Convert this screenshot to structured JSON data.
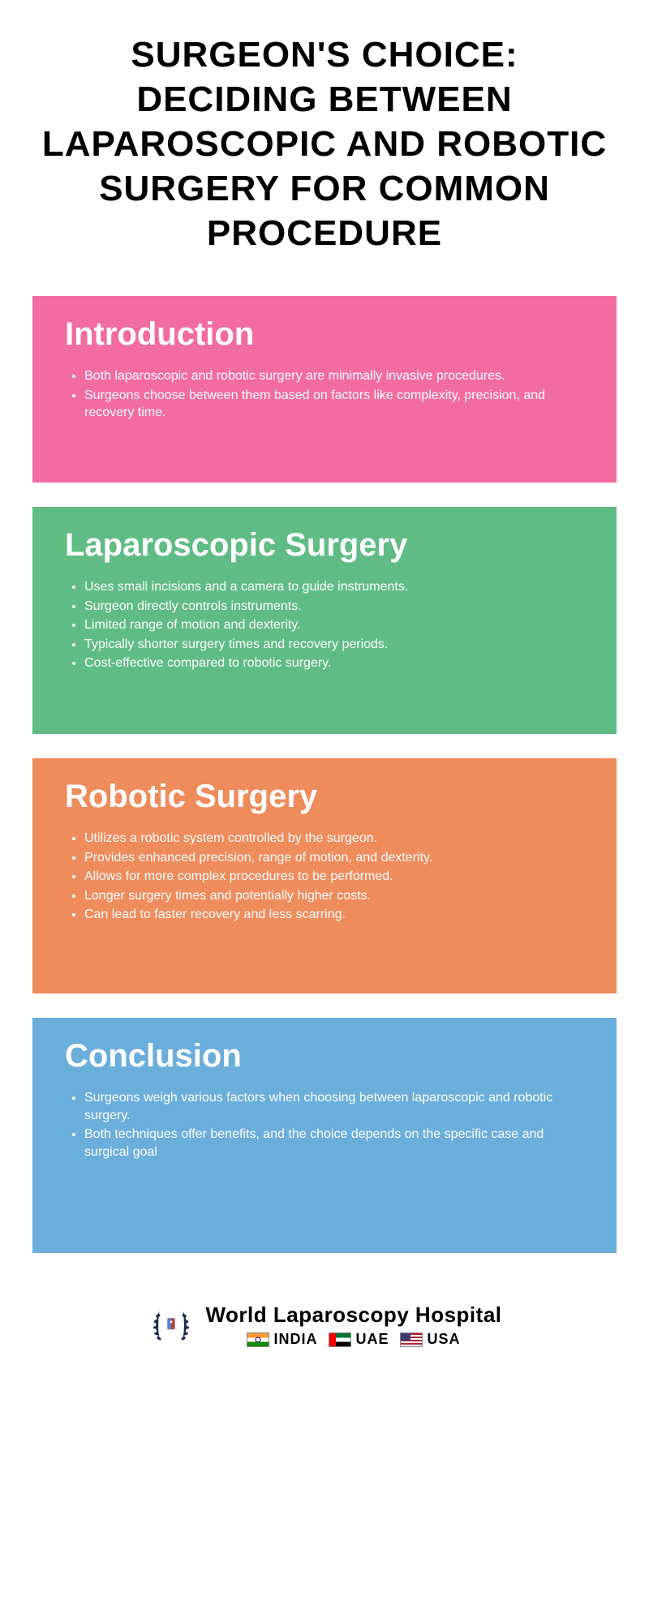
{
  "title": "SURGEON'S CHOICE: DECIDING BETWEEN LAPAROSCOPIC AND ROBOTIC SURGERY FOR COMMON PROCEDURE",
  "title_fontsize": 44,
  "title_color": "#000000",
  "background_color": "#ffffff",
  "sections": [
    {
      "title": "Introduction",
      "title_fontsize": 40,
      "bg_color": "#f26ba1",
      "text_color": "#ffffff",
      "body_fontsize": 16,
      "min_height": 230,
      "bullets": [
        "Both laparoscopic and robotic surgery are minimally invasive procedures.",
        "Surgeons choose between them based on factors like complexity, precision, and recovery time."
      ]
    },
    {
      "title": "Laparoscopic Surgery",
      "title_fontsize": 40,
      "bg_color": "#5fbc84",
      "text_color": "#ffffff",
      "body_fontsize": 16,
      "min_height": 280,
      "bullets": [
        "Uses small incisions and a camera to guide instruments.",
        "Surgeon directly controls instruments.",
        "Limited range of motion and dexterity.",
        "Typically shorter surgery times and recovery periods.",
        "Cost-effective compared to robotic surgery."
      ]
    },
    {
      "title": "Robotic Surgery",
      "title_fontsize": 40,
      "bg_color": "#ef8c5c",
      "text_color": "#ffffff",
      "body_fontsize": 16,
      "min_height": 290,
      "bullets": [
        "Utilizes a robotic system controlled by the surgeon.",
        "Provides enhanced precision, range of motion, and dexterity.",
        "Allows for more complex procedures to be performed.",
        "Longer surgery times and potentially higher costs.",
        "Can lead to faster recovery and less scarring."
      ]
    },
    {
      "title": "Conclusion",
      "title_fontsize": 40,
      "bg_color": "#6aaedb",
      "text_color": "#ffffff",
      "body_fontsize": 16,
      "min_height": 290,
      "bullets": [
        "Surgeons weigh various factors when choosing between laparoscopic and robotic surgery.",
        "Both techniques offer benefits, and the choice depends on the specific case and surgical goal"
      ]
    }
  ],
  "footer": {
    "hospital_name": "World Laparoscopy Hospital",
    "countries": [
      {
        "label": "INDIA",
        "flag": "india"
      },
      {
        "label": "UAE",
        "flag": "uae"
      },
      {
        "label": "USA",
        "flag": "usa"
      }
    ],
    "laurel_color": "#1a2a4a"
  }
}
